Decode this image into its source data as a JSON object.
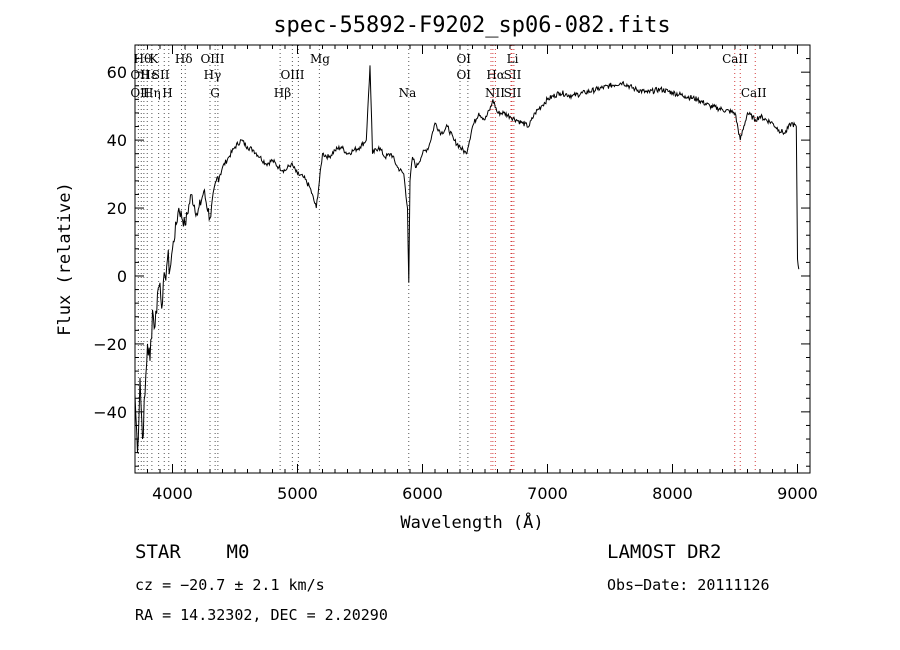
{
  "chart_data": {
    "type": "line",
    "title": "spec-55892-F9202_sp06-082.fits",
    "xlabel": "Wavelength (Å)",
    "ylabel": "Flux (relative)",
    "xlim": [
      3700,
      9100
    ],
    "ylim": [
      -58,
      68
    ],
    "xticks": [
      "4000",
      "5000",
      "6000",
      "7000",
      "8000",
      "9000"
    ],
    "yticks": [
      "-40",
      "-20",
      "0",
      "20",
      "40",
      "60"
    ],
    "x": [
      3700,
      3720,
      3740,
      3760,
      3780,
      3800,
      3820,
      3840,
      3860,
      3880,
      3900,
      3920,
      3940,
      3960,
      3980,
      4000,
      4050,
      4100,
      4150,
      4200,
      4250,
      4300,
      4350,
      4400,
      4450,
      4500,
      4550,
      4600,
      4650,
      4700,
      4750,
      4800,
      4850,
      4900,
      4950,
      5000,
      5050,
      5100,
      5150,
      5200,
      5250,
      5300,
      5350,
      5400,
      5450,
      5500,
      5550,
      5580,
      5600,
      5650,
      5700,
      5750,
      5800,
      5850,
      5880,
      5890,
      5900,
      5920,
      5950,
      6000,
      6050,
      6100,
      6150,
      6200,
      6250,
      6300,
      6350,
      6400,
      6450,
      6500,
      6550,
      6563,
      6600,
      6650,
      6700,
      6750,
      6800,
      6850,
      6900,
      6950,
      7000,
      7100,
      7200,
      7300,
      7400,
      7500,
      7600,
      7700,
      7800,
      7900,
      8000,
      8100,
      8200,
      8300,
      8400,
      8500,
      8542,
      8600,
      8662,
      8700,
      8800,
      8850,
      8900,
      8950,
      8990,
      9000,
      9010
    ],
    "y": [
      -35,
      -52,
      -30,
      -48,
      -35,
      -20,
      -25,
      -10,
      -15,
      -5,
      -2,
      -8,
      0,
      5,
      2,
      8,
      20,
      15,
      24,
      18,
      25,
      17,
      28,
      32,
      35,
      38,
      40,
      38,
      37,
      35,
      33,
      34,
      32,
      31,
      33,
      30,
      29,
      26,
      20,
      36,
      35,
      37,
      38,
      36,
      37,
      38,
      40,
      62,
      36,
      38,
      35,
      36,
      32,
      30,
      20,
      -2,
      28,
      35,
      32,
      36,
      38,
      45,
      42,
      44,
      40,
      38,
      36,
      44,
      48,
      46,
      50,
      52,
      48,
      48,
      47,
      46,
      45,
      44,
      48,
      50,
      52,
      54,
      53,
      54,
      55,
      56,
      57,
      55,
      54,
      55,
      54,
      53,
      52,
      50,
      49,
      48,
      40,
      48,
      46,
      47,
      45,
      43,
      42,
      45,
      44,
      5,
      2
    ],
    "grid": false,
    "line_labels": {
      "top": [
        "Hθ",
        "K",
        "Hδ",
        "OIII",
        "Mg",
        "OI",
        "Li",
        "CaII"
      ],
      "middle": [
        "OII",
        "Hε",
        "SII",
        "Hγ",
        "OIII",
        "OI",
        "Hα",
        "SII"
      ],
      "bottom": [
        "OII",
        "Hη",
        "H",
        "G",
        "Hβ",
        "Na",
        "NII",
        "SII",
        "CaII"
      ]
    },
    "line_positions": [
      3727,
      3750,
      3771,
      3798,
      3835,
      3889,
      3934,
      3970,
      4072,
      4102,
      4300,
      4341,
      4363,
      4861,
      4959,
      5007,
      5175,
      5890,
      6300,
      6363,
      6548,
      6563,
      6583,
      6708,
      6716,
      6731,
      8498,
      8542,
      8662
    ]
  },
  "footer": {
    "left_class": "STAR",
    "left_subclass": "M0",
    "cz": "cz = −20.7 ± 2.1 km/s",
    "radec": "RA =  14.32302, DEC =   2.20290",
    "survey": "LAMOST DR2",
    "obs_date": "Obs−Date: 20111126"
  }
}
